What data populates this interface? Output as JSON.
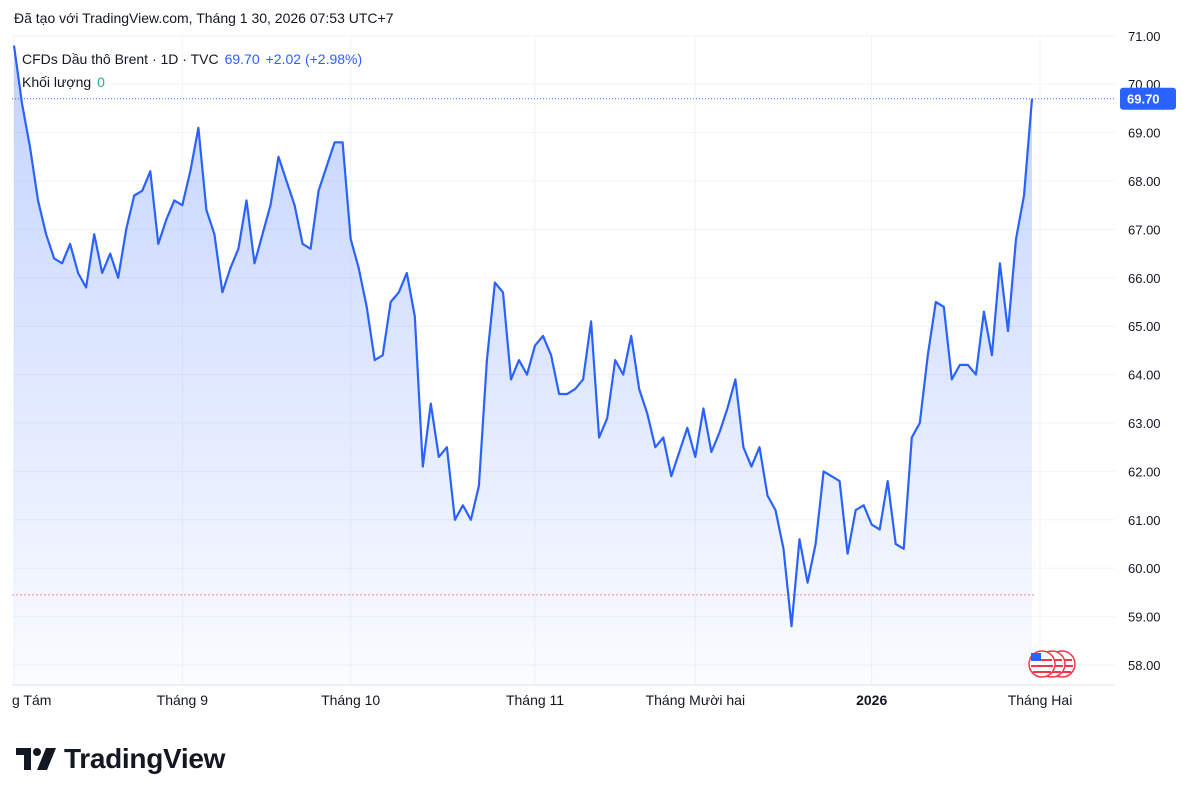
{
  "caption": "Đã tạo với TradingView.com, Tháng 1 30, 2026 07:53 UTC+7",
  "legend": {
    "symbol": "CFDs Dầu thô Brent · 1D · TVC",
    "price": "69.70",
    "change": "+2.02 (+2.98%)",
    "volume_label": "Khối lượng",
    "volume_value": "0"
  },
  "last_price_badge": "69.70",
  "brand": "TradingView",
  "icons": {
    "logo": "tradingview-logo-icon",
    "flag": "us-flag-icon"
  },
  "colors": {
    "line": "#2962ff",
    "badge": "#2962ff",
    "baseline": "#f23645",
    "volume": "#22ab94"
  },
  "chart_data": {
    "type": "area",
    "title": "",
    "xlabel": "",
    "ylabel": "",
    "ylim": [
      57.8,
      71.2
    ],
    "y_ticks": [
      "71.00",
      "70.00",
      "69.00",
      "68.00",
      "67.00",
      "66.00",
      "65.00",
      "64.00",
      "63.00",
      "62.00",
      "61.00",
      "60.00",
      "59.00",
      "58.00"
    ],
    "x_tick_labels": [
      {
        "label": "g Tám",
        "index": 0
      },
      {
        "label": "Tháng 9",
        "index": 21
      },
      {
        "label": "Tháng 10",
        "index": 42
      },
      {
        "label": "Tháng 11",
        "index": 65
      },
      {
        "label": "Tháng Mười hai",
        "index": 85
      },
      {
        "label": "2026",
        "index": 107,
        "bold": true
      },
      {
        "label": "Tháng Hai",
        "index": 128
      }
    ],
    "baseline_value": 59.45,
    "last_value": 69.7,
    "series": [
      {
        "values": [
          70.8,
          69.6,
          68.7,
          67.6,
          66.9,
          66.4,
          66.3,
          66.7,
          66.1,
          65.8,
          66.9,
          66.1,
          66.5,
          66.0,
          67.0,
          67.7,
          67.8,
          68.2,
          66.7,
          67.2,
          67.6,
          67.5,
          68.2,
          69.1,
          67.4,
          66.9,
          65.7,
          66.2,
          66.6,
          67.6,
          66.3,
          66.9,
          67.5,
          68.5,
          68.0,
          67.5,
          66.7,
          66.6,
          67.8,
          68.3,
          68.8,
          68.8,
          66.8,
          66.2,
          65.4,
          64.3,
          64.4,
          65.5,
          65.7,
          66.1,
          65.2,
          62.1,
          63.4,
          62.3,
          62.5,
          61.0,
          61.3,
          61.0,
          61.7,
          64.3,
          65.9,
          65.7,
          63.9,
          64.3,
          64.0,
          64.6,
          64.8,
          64.4,
          63.6,
          63.6,
          63.7,
          63.9,
          65.1,
          62.7,
          63.1,
          64.3,
          64.0,
          64.8,
          63.7,
          63.2,
          62.5,
          62.7,
          61.9,
          62.4,
          62.9,
          62.3,
          63.3,
          62.4,
          62.8,
          63.3,
          63.9,
          62.5,
          62.1,
          62.5,
          61.5,
          61.2,
          60.4,
          58.8,
          60.6,
          59.7,
          60.5,
          62.0,
          61.9,
          61.8,
          60.3,
          61.2,
          61.3,
          60.9,
          60.8,
          61.8,
          60.5,
          60.4,
          62.7,
          63.0,
          64.4,
          65.5,
          65.4,
          63.9,
          64.2,
          64.2,
          64.0,
          65.3,
          64.4,
          66.3,
          64.9,
          66.8,
          67.7,
          69.7
        ]
      }
    ]
  }
}
